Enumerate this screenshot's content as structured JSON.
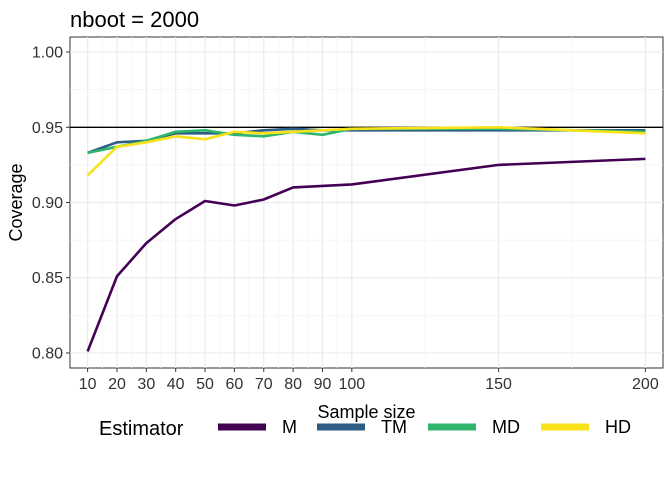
{
  "chart_data": {
    "type": "line",
    "title": "nboot = 2000",
    "xlabel": "Sample size",
    "ylabel": "Coverage",
    "xlim": [
      4,
      206
    ],
    "ylim": [
      0.79,
      1.01
    ],
    "x_ticks": [
      10,
      20,
      30,
      40,
      50,
      60,
      70,
      80,
      90,
      100,
      150,
      200
    ],
    "y_ticks": [
      0.8,
      0.85,
      0.9,
      0.95,
      1.0
    ],
    "y_tick_labels": [
      "0.80",
      "0.85",
      "0.90",
      "0.95",
      "1.00"
    ],
    "reference_line": 0.95,
    "grid": true,
    "legend_position": "bottom",
    "legend_title": "Estimator",
    "x": [
      10,
      20,
      30,
      40,
      50,
      60,
      70,
      80,
      90,
      100,
      150,
      200
    ],
    "series": [
      {
        "name": "M",
        "color": "#440154",
        "values": [
          0.801,
          0.851,
          0.873,
          0.889,
          0.901,
          0.898,
          0.902,
          0.91,
          0.911,
          0.912,
          0.925,
          0.929
        ]
      },
      {
        "name": "TM",
        "color": "#2D5C85",
        "values": [
          0.933,
          0.94,
          0.941,
          0.946,
          0.946,
          0.946,
          0.948,
          0.949,
          0.948,
          0.948,
          0.948,
          0.948
        ]
      },
      {
        "name": "MD",
        "color": "#2FB56B",
        "values": [
          0.933,
          0.937,
          0.941,
          0.947,
          0.948,
          0.945,
          0.944,
          0.947,
          0.945,
          0.949,
          0.949,
          0.947
        ]
      },
      {
        "name": "HD",
        "color": "#F9E219",
        "values": [
          0.918,
          0.937,
          0.94,
          0.944,
          0.942,
          0.947,
          0.946,
          0.947,
          0.948,
          0.949,
          0.95,
          0.946
        ]
      }
    ]
  }
}
